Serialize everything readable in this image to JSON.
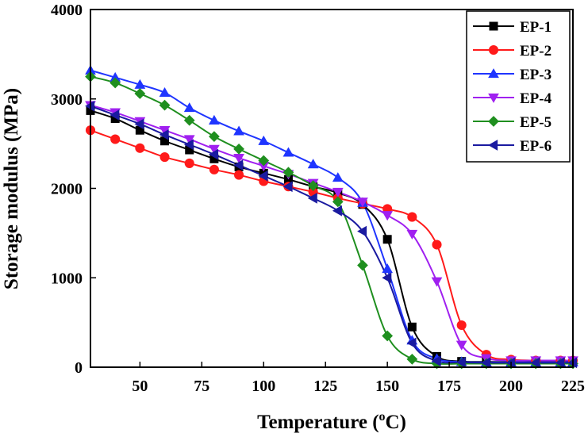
{
  "chart_data": {
    "type": "line",
    "title": "",
    "xlabel": "Temperature (ºC)",
    "xlabel_parts": {
      "prefix": "Temperature (",
      "sup": "o",
      "suffix": "C)"
    },
    "ylabel": "Storage modulus (MPa)",
    "xlim": [
      30,
      225
    ],
    "ylim": [
      0,
      4000
    ],
    "xticks": [
      50,
      75,
      100,
      125,
      150,
      175,
      200,
      225
    ],
    "yticks": [
      0,
      1000,
      2000,
      3000,
      4000
    ],
    "grid": false,
    "legend_position": "top-right",
    "series": [
      {
        "name": "EP-1",
        "color": "#000000",
        "marker": "square",
        "x": [
          30,
          40,
          50,
          60,
          70,
          80,
          90,
          100,
          110,
          120,
          130,
          140,
          150,
          160,
          170,
          180,
          190,
          200,
          210,
          220,
          225
        ],
        "y": [
          2870,
          2780,
          2650,
          2530,
          2430,
          2330,
          2240,
          2170,
          2100,
          2020,
          1950,
          1820,
          1430,
          450,
          120,
          65,
          60,
          58,
          58,
          58,
          58
        ]
      },
      {
        "name": "EP-2",
        "color": "#ff1a1a",
        "marker": "circle",
        "x": [
          30,
          40,
          50,
          60,
          70,
          80,
          90,
          100,
          110,
          120,
          130,
          140,
          150,
          160,
          170,
          180,
          190,
          200,
          210,
          220,
          225
        ],
        "y": [
          2650,
          2550,
          2450,
          2350,
          2280,
          2210,
          2150,
          2080,
          2020,
          1960,
          1890,
          1830,
          1770,
          1680,
          1370,
          470,
          140,
          85,
          75,
          75,
          75
        ]
      },
      {
        "name": "EP-3",
        "color": "#1f35ff",
        "marker": "triangle-up",
        "x": [
          30,
          40,
          50,
          60,
          70,
          80,
          90,
          100,
          110,
          120,
          130,
          140,
          150,
          160,
          170,
          180,
          190,
          200,
          210,
          220,
          225
        ],
        "y": [
          3320,
          3240,
          3160,
          3070,
          2900,
          2760,
          2640,
          2530,
          2400,
          2270,
          2120,
          1840,
          1100,
          300,
          95,
          60,
          55,
          55,
          55,
          55,
          55
        ]
      },
      {
        "name": "EP-4",
        "color": "#a020f0",
        "marker": "triangle-down",
        "x": [
          30,
          40,
          50,
          60,
          70,
          80,
          90,
          100,
          110,
          120,
          130,
          140,
          150,
          160,
          170,
          180,
          190,
          200,
          210,
          220,
          225
        ],
        "y": [
          2930,
          2850,
          2750,
          2650,
          2550,
          2440,
          2340,
          2250,
          2160,
          2060,
          1960,
          1850,
          1700,
          1490,
          960,
          250,
          100,
          75,
          75,
          75,
          75
        ]
      },
      {
        "name": "EP-5",
        "color": "#1f8f1f",
        "marker": "diamond",
        "x": [
          30,
          40,
          50,
          60,
          70,
          80,
          90,
          100,
          110,
          120,
          130,
          140,
          150,
          160,
          170,
          180,
          190,
          200,
          210,
          220,
          225
        ],
        "y": [
          3250,
          3180,
          3060,
          2930,
          2760,
          2580,
          2440,
          2310,
          2180,
          2030,
          1850,
          1140,
          350,
          90,
          40,
          40,
          40,
          40,
          40,
          40,
          40
        ]
      },
      {
        "name": "EP-6",
        "color": "#1a1aa0",
        "marker": "triangle-left",
        "x": [
          30,
          40,
          50,
          60,
          70,
          80,
          90,
          100,
          110,
          120,
          130,
          140,
          150,
          160,
          170,
          180,
          190,
          200,
          210,
          220,
          225
        ],
        "y": [
          2920,
          2820,
          2720,
          2600,
          2490,
          2380,
          2260,
          2140,
          2020,
          1890,
          1750,
          1520,
          1000,
          270,
          70,
          55,
          50,
          50,
          50,
          50,
          50
        ]
      }
    ]
  }
}
